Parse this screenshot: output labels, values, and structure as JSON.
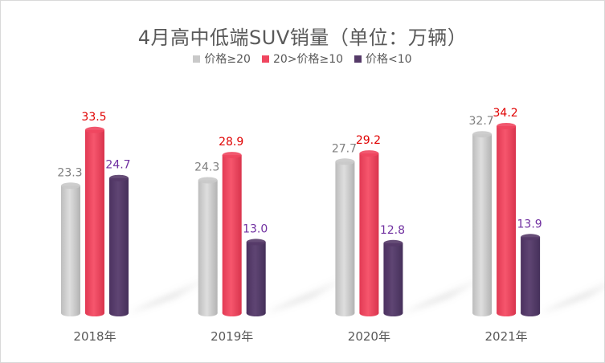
{
  "chart_data": {
    "type": "bar",
    "title": "4月高中低端SUV销量（单位：万辆）",
    "categories": [
      "2018年",
      "2019年",
      "2020年",
      "2021年"
    ],
    "series": [
      {
        "name": "价格≥20",
        "color": "#c9c9c9",
        "label_color": "#7f7f7f",
        "values": [
          23.3,
          24.3,
          27.7,
          32.7
        ]
      },
      {
        "name": "20>价格≥10",
        "color": "#f0465f",
        "label_color": "#e00000",
        "values": [
          33.5,
          28.9,
          29.2,
          34.2
        ]
      },
      {
        "name": "价格<10",
        "color": "#553a68",
        "label_color": "#7030a0",
        "values": [
          24.7,
          13.0,
          12.8,
          13.9
        ]
      }
    ],
    "ylim": [
      0,
      34.2
    ],
    "grid": false,
    "legend_position": "top"
  }
}
